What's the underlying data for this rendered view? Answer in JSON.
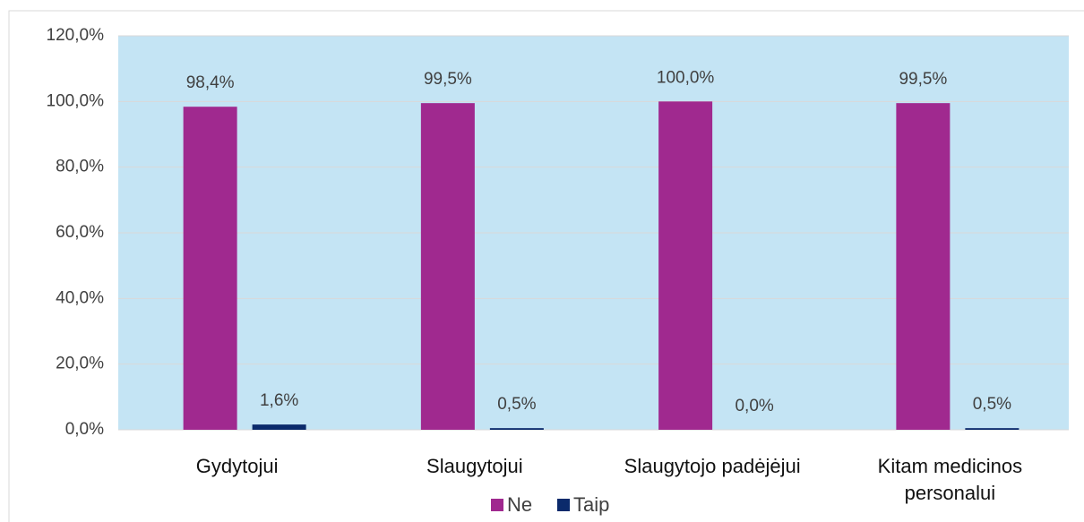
{
  "chart_data": {
    "type": "bar",
    "categories": [
      "Gydytojui",
      "Slaugytojui",
      "Slaugytojo padėjėjui",
      "Kitam medicinos personalui"
    ],
    "series": [
      {
        "name": "Ne",
        "color": "#a0298f",
        "values": [
          98.4,
          99.5,
          100.0,
          99.5
        ],
        "value_labels": [
          "98,4%",
          "99,5%",
          "100,0%",
          "99,5%"
        ]
      },
      {
        "name": "Taip",
        "color": "#0b2a6b",
        "values": [
          1.6,
          0.5,
          0.0,
          0.5
        ],
        "value_labels": [
          "1,6%",
          "0,5%",
          "0,0%",
          "0,5%"
        ]
      }
    ],
    "ylim": [
      0,
      120
    ],
    "yticks": [
      {
        "value": 0,
        "label": "0,0%"
      },
      {
        "value": 20,
        "label": "20,0%"
      },
      {
        "value": 40,
        "label": "40,0%"
      },
      {
        "value": 60,
        "label": "60,0%"
      },
      {
        "value": 80,
        "label": "80,0%"
      },
      {
        "value": 100,
        "label": "100,0%"
      },
      {
        "value": 120,
        "label": "120,0%"
      }
    ],
    "grid": true,
    "plot_background": "#c4e4f4",
    "legend": "bottom"
  }
}
